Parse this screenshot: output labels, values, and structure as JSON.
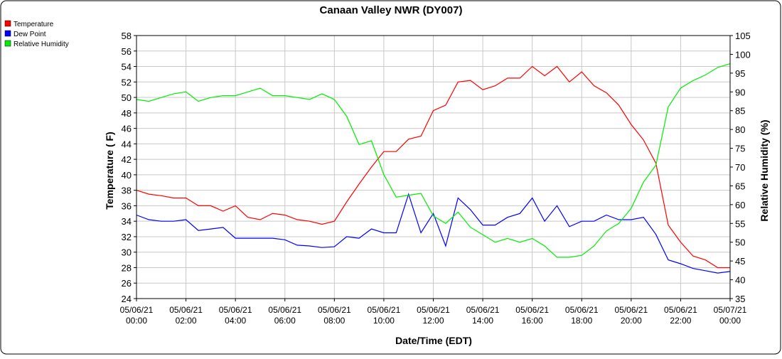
{
  "chart_data": {
    "type": "line",
    "title": "Canaan Valley NWR (DY007)",
    "xlabel": "Date/Time (EDT)",
    "ylabel": "Temperature ( F)",
    "y2label": "Relative Humidity (%)",
    "ylim": [
      24,
      58
    ],
    "y2lim": [
      35,
      105
    ],
    "yticks": [
      "24",
      "26",
      "28",
      "30",
      "32",
      "34",
      "36",
      "38",
      "40",
      "42",
      "44",
      "46",
      "48",
      "50",
      "52",
      "54",
      "56",
      "58"
    ],
    "y2ticks": [
      "35",
      "40",
      "45",
      "50",
      "55",
      "60",
      "65",
      "70",
      "75",
      "80",
      "85",
      "90",
      "95",
      "100",
      "105"
    ],
    "xticks": [
      [
        "05/06/21",
        "00:00"
      ],
      [
        "05/06/21",
        "02:00"
      ],
      [
        "05/06/21",
        "04:00"
      ],
      [
        "05/06/21",
        "06:00"
      ],
      [
        "05/06/21",
        "08:00"
      ],
      [
        "05/06/21",
        "10:00"
      ],
      [
        "05/06/21",
        "12:00"
      ],
      [
        "05/06/21",
        "14:00"
      ],
      [
        "05/06/21",
        "16:00"
      ],
      [
        "05/06/21",
        "18:00"
      ],
      [
        "05/06/21",
        "20:00"
      ],
      [
        "05/06/21",
        "22:00"
      ],
      [
        "05/07/21",
        "00:00"
      ]
    ],
    "x_hours_step": 0.5,
    "grid": true,
    "legend_position": "top-left",
    "series": [
      {
        "name": "Temperature",
        "axis": "left",
        "color": "#ff0000",
        "values": [
          38.0,
          37.5,
          37.3,
          37.0,
          37.0,
          36.0,
          36.0,
          35.3,
          36.0,
          34.5,
          34.2,
          35.0,
          34.8,
          34.2,
          34.0,
          33.6,
          34.0,
          36.5,
          38.8,
          41.0,
          43.0,
          43.0,
          44.6,
          45.0,
          48.3,
          49.0,
          52.0,
          52.2,
          51.0,
          51.5,
          52.5,
          52.5,
          54.0,
          52.8,
          54.0,
          52.0,
          53.3,
          51.5,
          50.6,
          49.0,
          46.5,
          44.5,
          41.5,
          33.5,
          31.3,
          29.5,
          29.0,
          28.0,
          28.0
        ]
      },
      {
        "name": "Dew Point",
        "axis": "left",
        "color": "#0000ff",
        "values": [
          34.8,
          34.2,
          34.0,
          34.0,
          34.2,
          32.8,
          33.0,
          33.2,
          31.8,
          31.8,
          31.8,
          31.8,
          31.6,
          30.9,
          30.8,
          30.6,
          30.7,
          32.0,
          31.8,
          33.0,
          32.5,
          32.5,
          37.5,
          32.5,
          35.0,
          30.8,
          37.0,
          35.5,
          33.5,
          33.5,
          34.5,
          35.0,
          37.0,
          34.0,
          36.0,
          33.3,
          34.0,
          34.0,
          34.8,
          34.2,
          34.2,
          34.5,
          32.3,
          29.0,
          28.5,
          27.9,
          27.6,
          27.3,
          27.5
        ]
      },
      {
        "name": "Relative Humidity",
        "axis": "right",
        "color": "#00ee00",
        "values": [
          88,
          87.5,
          88.5,
          89.5,
          90,
          87.5,
          88.5,
          89,
          89,
          90,
          91,
          89,
          89,
          88.5,
          88,
          89.5,
          88,
          83.5,
          76,
          77,
          68,
          62,
          62.5,
          63,
          57,
          55,
          58,
          54,
          52,
          50,
          51,
          50,
          51,
          49,
          46,
          46,
          46.5,
          49,
          53,
          55,
          59,
          66,
          70.5,
          86,
          91,
          93,
          94.5,
          96.5,
          97.5
        ]
      }
    ]
  }
}
